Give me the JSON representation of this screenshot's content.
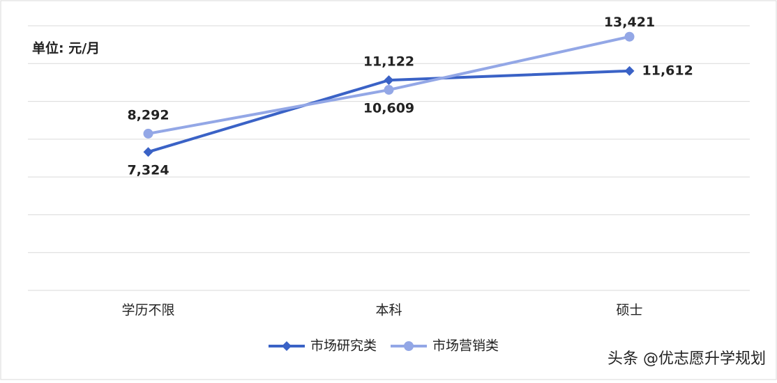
{
  "chart_data": {
    "type": "line",
    "unit_label": "单位: 元/月",
    "categories": [
      "学历不限",
      "本科",
      "硕士"
    ],
    "series": [
      {
        "name": "市场研究类",
        "color": "#3a62c6",
        "marker": "diamond",
        "values": [
          7324,
          11122,
          11612
        ],
        "value_labels": [
          "7,324",
          "11,122",
          "11,612"
        ]
      },
      {
        "name": "市场营销类",
        "color": "#93a7e6",
        "marker": "circle",
        "values": [
          8292,
          10609,
          13421
        ],
        "value_labels": [
          "8,292",
          "10,609",
          "13,421"
        ]
      }
    ],
    "ylim": [
      0,
      14000
    ],
    "yticks": [
      0,
      2000,
      4000,
      6000,
      8000,
      10000,
      12000,
      14000
    ],
    "grid": true,
    "source": "头条 @优志愿升学规划"
  }
}
